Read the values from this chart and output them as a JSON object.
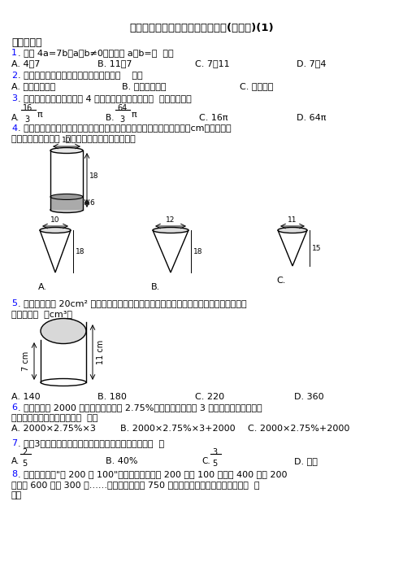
{
  "title": "新小学六年级数学下期中一模试卷(带答案)(1)",
  "bg_color": "#ffffff",
  "text_color": "#000000",
  "blue_color": "#0000ff",
  "section1": "一、选择题",
  "q1_opts": [
    "A. 4：7",
    "B. 11：7",
    "C. 7：11",
    "D. 7：4"
  ],
  "q2_opts": [
    "A. 成正比例关系",
    "B. 成反比例关系",
    "C. 不成比例"
  ],
  "q3_optC": "16π",
  "q3_optD": "64π",
  "q5_opts": [
    "A. 140",
    "B. 180",
    "C. 220",
    "D. 360"
  ],
  "q6_opts": [
    "A. 2000×2.75%×3",
    "B. 2000×2.75%×3+2000",
    "C. 2000×2.75%+2000"
  ]
}
